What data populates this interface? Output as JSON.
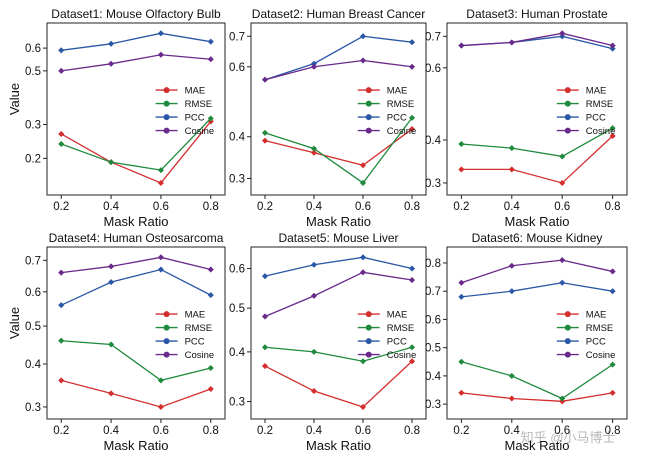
{
  "chart_data": [
    {
      "type": "line",
      "title": "Dataset1: Mouse Olfactory Bulb",
      "xlabel": "Mask Ratio",
      "ylabel": "Value",
      "x": [
        0.2,
        0.4,
        0.6,
        0.8
      ],
      "xticks": [
        "0.2",
        "0.4",
        "0.6",
        "0.8"
      ],
      "yticks": [
        "0.2",
        "0.3",
        "0.5",
        "0.6"
      ],
      "yscale": "sqrt",
      "ylim": [
        0.14,
        0.67
      ],
      "grid": false,
      "legend": "center-right",
      "series": [
        {
          "name": "MAE",
          "values": [
            0.27,
            0.19,
            0.14,
            0.31
          ]
        },
        {
          "name": "RMSE",
          "values": [
            0.24,
            0.19,
            0.17,
            0.32
          ]
        },
        {
          "name": "PCC",
          "values": [
            0.59,
            0.62,
            0.67,
            0.63
          ]
        },
        {
          "name": "Cosine",
          "values": [
            0.5,
            0.53,
            0.57,
            0.55
          ]
        }
      ]
    },
    {
      "type": "line",
      "title": "Dataset2: Human Breast Cancer",
      "xlabel": "Mask Ratio",
      "ylabel": "",
      "x": [
        0.2,
        0.4,
        0.6,
        0.8
      ],
      "xticks": [
        "0.2",
        "0.4",
        "0.6",
        "0.8"
      ],
      "yticks": [
        "0.3",
        "0.4",
        "0.6",
        "0.7"
      ],
      "yscale": "sqrt",
      "ylim": [
        0.29,
        0.71
      ],
      "grid": false,
      "legend": "center-right",
      "series": [
        {
          "name": "MAE",
          "values": [
            0.39,
            0.36,
            0.33,
            0.42
          ]
        },
        {
          "name": "RMSE",
          "values": [
            0.41,
            0.37,
            0.29,
            0.45
          ]
        },
        {
          "name": "PCC",
          "values": [
            0.56,
            0.61,
            0.7,
            0.68
          ]
        },
        {
          "name": "Cosine",
          "values": [
            0.56,
            0.6,
            0.62,
            0.6
          ]
        }
      ]
    },
    {
      "type": "line",
      "title": "Dataset3: Human Prostate",
      "xlabel": "Mask Ratio",
      "ylabel": "",
      "x": [
        0.2,
        0.4,
        0.6,
        0.8
      ],
      "xticks": [
        "0.2",
        "0.4",
        "0.6",
        "0.8"
      ],
      "yticks": [
        "0.3",
        "0.4",
        "0.6",
        "0.7"
      ],
      "yscale": "sqrt",
      "ylim": [
        0.3,
        0.71
      ],
      "grid": false,
      "legend": "center-right",
      "series": [
        {
          "name": "MAE",
          "values": [
            0.33,
            0.33,
            0.3,
            0.41
          ]
        },
        {
          "name": "RMSE",
          "values": [
            0.39,
            0.38,
            0.36,
            0.43
          ]
        },
        {
          "name": "PCC",
          "values": [
            0.67,
            0.68,
            0.7,
            0.66
          ]
        },
        {
          "name": "Cosine",
          "values": [
            0.67,
            0.68,
            0.71,
            0.67
          ]
        }
      ]
    },
    {
      "type": "line",
      "title": "Dataset4: Human Osteosarcoma",
      "xlabel": "Mask Ratio",
      "ylabel": "Value",
      "x": [
        0.2,
        0.4,
        0.6,
        0.8
      ],
      "xticks": [
        "0.2",
        "0.4",
        "0.6",
        "0.8"
      ],
      "yticks": [
        "0.3",
        "0.4",
        "0.5",
        "0.6",
        "0.7"
      ],
      "yscale": "sqrt",
      "ylim": [
        0.3,
        0.71
      ],
      "grid": false,
      "legend": "center-right",
      "series": [
        {
          "name": "MAE",
          "values": [
            0.36,
            0.33,
            0.3,
            0.34
          ]
        },
        {
          "name": "RMSE",
          "values": [
            0.46,
            0.45,
            0.36,
            0.39
          ]
        },
        {
          "name": "PCC",
          "values": [
            0.56,
            0.63,
            0.67,
            0.59
          ]
        },
        {
          "name": "Cosine",
          "values": [
            0.66,
            0.68,
            0.71,
            0.67
          ]
        }
      ]
    },
    {
      "type": "line",
      "title": "Dataset5: Mouse Liver",
      "xlabel": "Mask Ratio",
      "ylabel": "",
      "x": [
        0.2,
        0.4,
        0.6,
        0.8
      ],
      "xticks": [
        "0.2",
        "0.4",
        "0.6",
        "0.8"
      ],
      "yticks": [
        "0.3",
        "0.4",
        "0.5",
        "0.6"
      ],
      "yscale": "sqrt",
      "ylim": [
        0.29,
        0.63
      ],
      "grid": false,
      "legend": "center-right",
      "series": [
        {
          "name": "MAE",
          "values": [
            0.37,
            0.32,
            0.29,
            0.38
          ]
        },
        {
          "name": "RMSE",
          "values": [
            0.41,
            0.4,
            0.38,
            0.41
          ]
        },
        {
          "name": "PCC",
          "values": [
            0.58,
            0.61,
            0.63,
            0.6
          ]
        },
        {
          "name": "Cosine",
          "values": [
            0.48,
            0.53,
            0.59,
            0.57
          ]
        }
      ]
    },
    {
      "type": "line",
      "title": "Dataset6: Mouse Kidney",
      "xlabel": "Mask Ratio",
      "ylabel": "",
      "x": [
        0.2,
        0.4,
        0.6,
        0.8
      ],
      "xticks": [
        "0.2",
        "0.4",
        "0.6",
        "0.8"
      ],
      "yticks": [
        "0.3",
        "0.4",
        "0.5",
        "0.6",
        "0.7",
        "0.8"
      ],
      "yscale": "linear",
      "ylim": [
        0.29,
        0.82
      ],
      "grid": false,
      "legend": "center-right",
      "series": [
        {
          "name": "MAE",
          "values": [
            0.34,
            0.32,
            0.31,
            0.34
          ]
        },
        {
          "name": "RMSE",
          "values": [
            0.45,
            0.4,
            0.32,
            0.44
          ]
        },
        {
          "name": "PCC",
          "values": [
            0.68,
            0.7,
            0.73,
            0.7
          ]
        },
        {
          "name": "Cosine",
          "values": [
            0.73,
            0.79,
            0.81,
            0.77
          ]
        }
      ]
    }
  ],
  "series_colors": {
    "MAE": "#d42e2e",
    "RMSE": "#1f8a3d",
    "PCC": "#2b58a6",
    "Cosine": "#6a2a8c"
  },
  "watermark": "知乎 @小马博士"
}
